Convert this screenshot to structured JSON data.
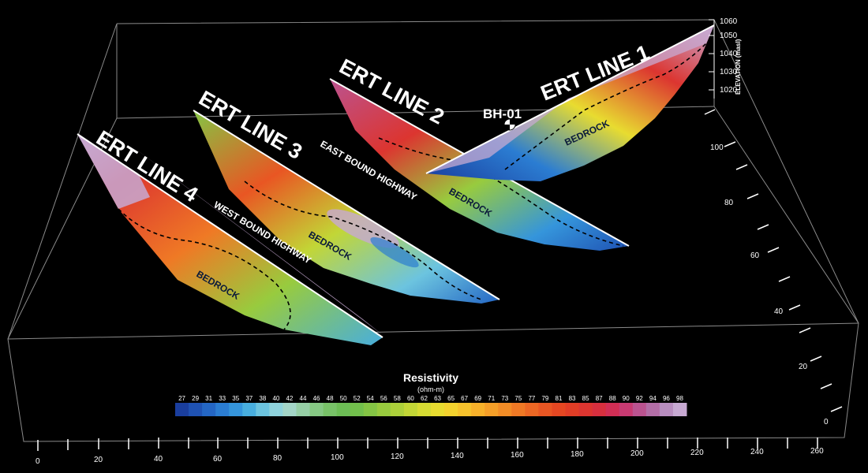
{
  "lines": [
    {
      "label": "ERT LINE 1"
    },
    {
      "label": "ERT LINE 2"
    },
    {
      "label": "ERT LINE 3"
    },
    {
      "label": "ERT LINE 4"
    }
  ],
  "borehole": "BH-01",
  "roads": {
    "east": "EAST BOUND HIGHWAY",
    "west": "WEST BOUND HIGHWAY"
  },
  "bedrock_label": "BEDROCK",
  "elevation_axis": {
    "title": "ELEVATION (masl)",
    "ticks": [
      "1060",
      "1050",
      "1040",
      "1030",
      "1020"
    ]
  },
  "y_axis": {
    "ticks": [
      "100",
      "80",
      "60",
      "40",
      "20",
      "0"
    ]
  },
  "x_axis": {
    "ticks": [
      "0",
      "20",
      "40",
      "60",
      "80",
      "100",
      "120",
      "140",
      "160",
      "180",
      "200",
      "220",
      "240",
      "260"
    ]
  },
  "legend": {
    "title": "Resistivity",
    "unit": "(ohm-m)",
    "values": [
      "27",
      "29",
      "31",
      "33",
      "35",
      "37",
      "38",
      "40",
      "42",
      "44",
      "46",
      "48",
      "50",
      "52",
      "54",
      "56",
      "58",
      "60",
      "62",
      "63",
      "65",
      "67",
      "69",
      "71",
      "73",
      "75",
      "77",
      "79",
      "81",
      "83",
      "85",
      "87",
      "88",
      "90",
      "92",
      "94",
      "96",
      "98"
    ],
    "colors": [
      "#1a3e9e",
      "#1f52b3",
      "#2466c4",
      "#2b7dd2",
      "#3595db",
      "#48aede",
      "#6cc4df",
      "#8fd3dc",
      "#a4d6c8",
      "#96cfa6",
      "#86c884",
      "#78c268",
      "#6cbd55",
      "#72c04c",
      "#84c544",
      "#98cb3e",
      "#acd03a",
      "#c2d636",
      "#d6db33",
      "#e8dc30",
      "#f3d22e",
      "#f6c22c",
      "#f7b12a",
      "#f59f28",
      "#f28c26",
      "#ef7925",
      "#ec6724",
      "#e95623",
      "#e54722",
      "#e13d26",
      "#dc3530",
      "#d72f3e",
      "#d12e55",
      "#c83a72",
      "#bb5390",
      "#b36ea7",
      "#b88dbf",
      "#c7a9d2"
    ]
  }
}
